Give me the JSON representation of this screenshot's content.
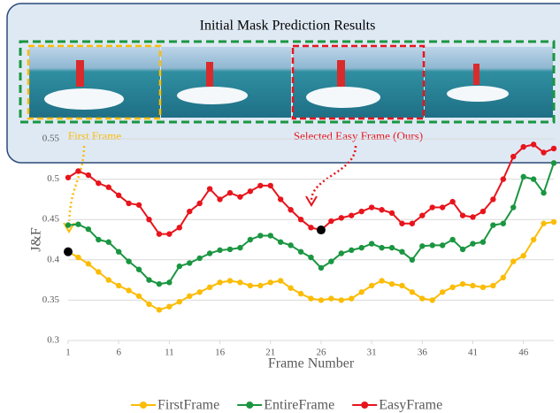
{
  "panel": {
    "title": "Initial Mask Prediction Results",
    "first_label": "First Frame",
    "easy_label": "Selected Easy Frame (Ours)"
  },
  "chart_data": {
    "type": "line",
    "x_label": "Frame Number",
    "y_label": "J&F",
    "x": [
      1,
      2,
      3,
      4,
      5,
      6,
      7,
      8,
      9,
      10,
      11,
      12,
      13,
      14,
      15,
      16,
      17,
      18,
      19,
      20,
      21,
      22,
      23,
      24,
      25,
      26,
      27,
      28,
      29,
      30,
      31,
      32,
      33,
      34,
      35,
      36,
      37,
      38,
      39,
      40,
      41,
      42,
      43,
      44,
      45,
      46,
      47,
      48,
      49
    ],
    "series": [
      {
        "name": "FirstFrame",
        "color": "#fbbc05",
        "values": [
          0.41,
          0.403,
          0.395,
          0.385,
          0.375,
          0.368,
          0.362,
          0.355,
          0.345,
          0.338,
          0.342,
          0.348,
          0.355,
          0.36,
          0.366,
          0.372,
          0.374,
          0.372,
          0.368,
          0.368,
          0.372,
          0.374,
          0.365,
          0.358,
          0.352,
          0.35,
          0.352,
          0.35,
          0.352,
          0.36,
          0.368,
          0.374,
          0.37,
          0.368,
          0.36,
          0.352,
          0.35,
          0.36,
          0.366,
          0.37,
          0.368,
          0.366,
          0.368,
          0.378,
          0.398,
          0.405,
          0.425,
          0.445,
          0.447
        ]
      },
      {
        "name": "EntireFrame",
        "color": "#1a9641",
        "values": [
          0.443,
          0.444,
          0.438,
          0.425,
          0.422,
          0.41,
          0.398,
          0.388,
          0.375,
          0.37,
          0.372,
          0.392,
          0.396,
          0.402,
          0.408,
          0.412,
          0.413,
          0.415,
          0.425,
          0.43,
          0.43,
          0.422,
          0.418,
          0.41,
          0.403,
          0.39,
          0.398,
          0.408,
          0.412,
          0.415,
          0.42,
          0.415,
          0.415,
          0.41,
          0.4,
          0.417,
          0.418,
          0.418,
          0.425,
          0.413,
          0.42,
          0.422,
          0.443,
          0.445,
          0.465,
          0.503,
          0.5,
          0.483,
          0.52
        ]
      },
      {
        "name": "EasyFrame",
        "color": "#e8141c",
        "values": [
          0.502,
          0.51,
          0.505,
          0.495,
          0.49,
          0.48,
          0.47,
          0.468,
          0.45,
          0.432,
          0.432,
          0.44,
          0.46,
          0.47,
          0.488,
          0.475,
          0.483,
          0.478,
          0.485,
          0.492,
          0.492,
          0.475,
          0.462,
          0.45,
          0.44,
          0.437,
          0.448,
          0.452,
          0.455,
          0.46,
          0.465,
          0.462,
          0.458,
          0.445,
          0.445,
          0.455,
          0.465,
          0.465,
          0.472,
          0.455,
          0.453,
          0.46,
          0.475,
          0.5,
          0.528,
          0.54,
          0.543,
          0.533,
          0.538
        ]
      }
    ],
    "highlight_points": [
      {
        "x": 1,
        "y": 0.41
      },
      {
        "x": 26,
        "y": 0.437
      }
    ],
    "xlim": [
      1,
      49
    ],
    "xticks": [
      1,
      6,
      11,
      16,
      21,
      26,
      31,
      36,
      41,
      46
    ],
    "ylim": [
      0.3,
      0.55
    ],
    "yticks": [
      0.3,
      0.35,
      0.4,
      0.45,
      0.5,
      0.55
    ],
    "grid": true
  }
}
